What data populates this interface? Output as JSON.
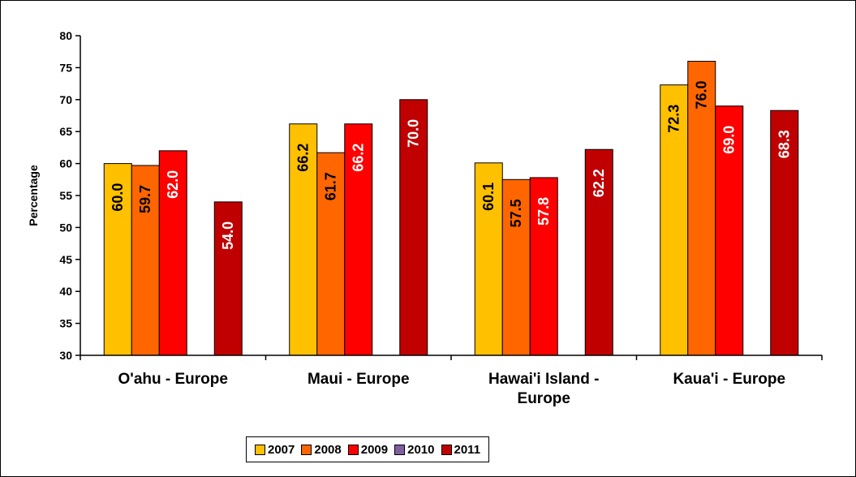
{
  "chart_data": {
    "type": "bar",
    "title": "",
    "xlabel": "",
    "ylabel": "Percentage",
    "ylim": [
      30,
      80
    ],
    "yticks": [
      30,
      35,
      40,
      45,
      50,
      55,
      60,
      65,
      70,
      75,
      80
    ],
    "categories": [
      [
        "O'ahu - Europe"
      ],
      [
        "Maui - Europe"
      ],
      [
        "Hawai'i Island -",
        "Europe"
      ],
      [
        "Kaua'i - Europe"
      ]
    ],
    "series": [
      {
        "name": "2007",
        "color": "#FFC000",
        "label_color": "#000000",
        "values": [
          60.0,
          66.2,
          60.1,
          72.3
        ]
      },
      {
        "name": "2008",
        "color": "#FF6600",
        "label_color": "#000000",
        "values": [
          59.7,
          61.7,
          57.5,
          76.0
        ]
      },
      {
        "name": "2009",
        "color": "#FF0000",
        "label_color": "#FFFFFF",
        "values": [
          62.0,
          66.2,
          57.8,
          69.0
        ]
      },
      {
        "name": "2010",
        "color": "#7F5F9F",
        "label_color": "#FFFFFF",
        "values": [
          null,
          null,
          null,
          null
        ]
      },
      {
        "name": "2011",
        "color": "#C00000",
        "label_color": "#FFFFFF",
        "values": [
          54.0,
          70.0,
          62.2,
          68.3
        ]
      }
    ],
    "grid": false,
    "legend_position": "bottom"
  }
}
